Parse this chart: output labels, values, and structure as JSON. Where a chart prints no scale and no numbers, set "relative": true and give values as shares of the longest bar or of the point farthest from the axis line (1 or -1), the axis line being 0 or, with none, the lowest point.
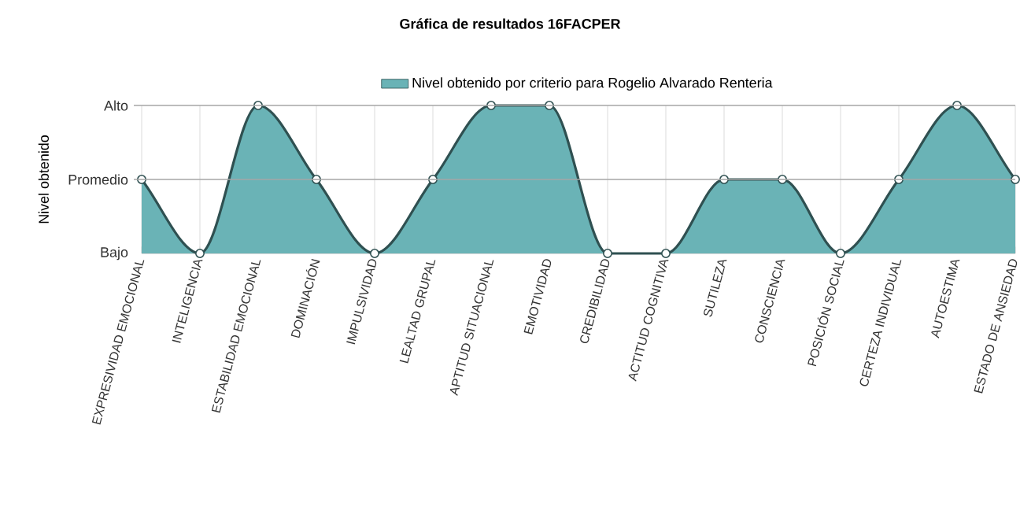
{
  "chart_data": {
    "type": "area",
    "title": "Gráfica de resultados 16FACPER",
    "ylabel": "Nivel obtenido",
    "categories": [
      "EXPRESIVIDAD EMOCIONAL",
      "INTELIGENCIA",
      "ESTABILIDAD EMOCIONAL",
      "DOMINACIÓN",
      "IMPULSIVIDAD",
      "LEALTAD GRUPAL",
      "APTITUD SITUACIONAL",
      "EMOTIVIDAD",
      "CREDIBILIDAD",
      "ACTITUD COGNITIVA",
      "SUTILEZA",
      "CONSCIENCIA",
      "POSICIÓN SOCIAL",
      "CERTEZA INDIVIDUAL",
      "AUTOESTIMA",
      "ESTADO DE ANSIEDAD"
    ],
    "series": [
      {
        "name": "Nivel obtenido por criterio para Rogelio Alvarado Renteria",
        "color": "#6ab3b6",
        "values": [
          0.5,
          0,
          1,
          0.5,
          0,
          0.5,
          1,
          1,
          0,
          0,
          0.5,
          0.5,
          0,
          0.5,
          1,
          0.5
        ]
      }
    ],
    "relative": true,
    "ref_lines": [
      {
        "axis": "y",
        "value": 1,
        "label": "Alto",
        "color": "#a6a6a6"
      },
      {
        "axis": "y",
        "value": 0.5,
        "label": "Promedio",
        "color": "#a6a6a6"
      }
    ],
    "annotations": [
      "Bajo"
    ],
    "grid": "x",
    "legend": "top",
    "marker": "circle",
    "line_style": "solid"
  }
}
